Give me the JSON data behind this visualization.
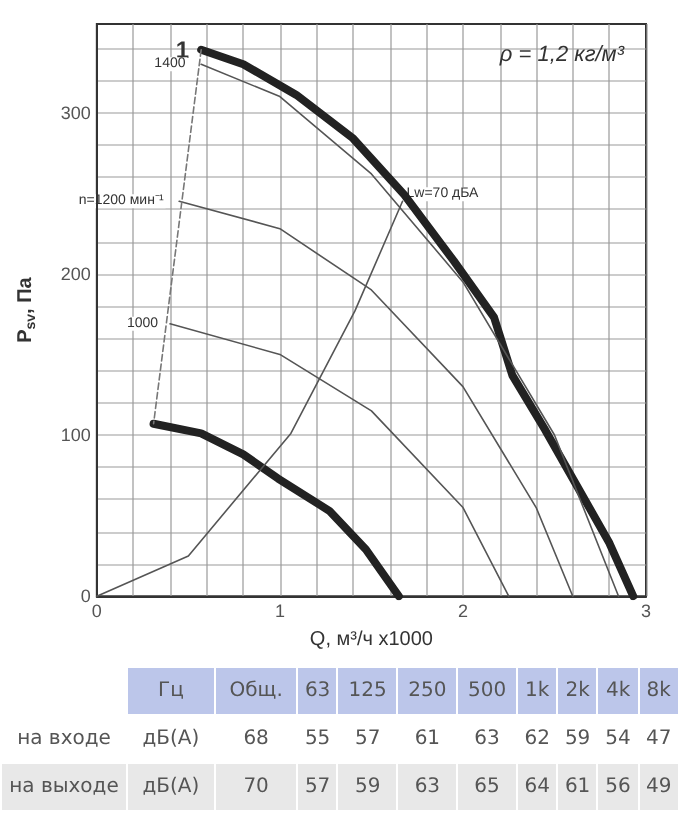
{
  "chart_data": [
    {
      "type": "line",
      "xlabel": "Q, м³/ч x1000",
      "ylabel": "P$_{sv}$, Па",
      "xlim": [
        0,
        3
      ],
      "ylim": [
        0,
        355
      ],
      "xticks": [
        0,
        {
          "value": 0.2,
          "label": null
        },
        {
          "value": 0.4,
          "label": null
        },
        {
          "value": 0.6,
          "label": null
        },
        {
          "value": 0.8,
          "label": null
        },
        1,
        {
          "value": 1.2,
          "label": null
        },
        {
          "value": 1.4,
          "label": null
        },
        {
          "value": 1.6,
          "label": null
        },
        {
          "value": 1.8,
          "label": null
        },
        2,
        {
          "value": 2.2,
          "label": null
        },
        {
          "value": 2.4,
          "label": null
        },
        {
          "value": 2.6,
          "label": null
        },
        {
          "value": 2.8,
          "label": null
        },
        3
      ],
      "yticks": [
        0,
        {
          "value": 20,
          "label": null
        },
        {
          "value": 40,
          "label": null
        },
        {
          "value": 60,
          "label": null
        },
        {
          "value": 80,
          "label": null
        },
        100,
        {
          "value": 120,
          "label": null
        },
        {
          "value": 140,
          "label": null
        },
        {
          "value": 160,
          "label": null
        },
        {
          "value": 180,
          "label": null
        },
        200,
        {
          "value": 220,
          "label": null
        },
        {
          "value": 240,
          "label": null
        },
        {
          "value": 260,
          "label": null
        },
        {
          "value": 280,
          "label": null
        },
        300,
        {
          "value": 320,
          "label": null
        },
        {
          "value": 340,
          "label": null
        }
      ],
      "grid": true,
      "marker": "none",
      "series": [
        {
          "color": "#222222",
          "x": [
            0.57,
            0.8,
            1.09,
            1.4,
            1.68,
            1.95,
            2.17,
            2.27,
            2.45,
            2.62,
            2.8,
            2.93
          ],
          "values": [
            339,
            330,
            311,
            284,
            249,
            208,
            173,
            137,
            103,
            69,
            33,
            0
          ]
        },
        {
          "color": "#222222",
          "x": [
            0.31,
            0.57,
            0.8,
            0.99,
            1.27,
            1.47,
            1.65
          ],
          "values": [
            107,
            101,
            88,
            73,
            53,
            29,
            0
          ]
        },
        {
          "color": "#555555",
          "x": [
            0.57,
            1.0,
            1.5,
            2.0,
            2.5,
            2.85
          ],
          "values": [
            330,
            310,
            262,
            195,
            100,
            0
          ]
        },
        {
          "color": "#555555",
          "x": [
            0.45,
            1.0,
            1.5,
            2.0,
            2.4,
            2.6
          ],
          "values": [
            245,
            228,
            190,
            130,
            55,
            0
          ]
        },
        {
          "color": "#555555",
          "x": [
            0.4,
            1.0,
            1.5,
            2.0,
            2.25
          ],
          "values": [
            169,
            150,
            115,
            55,
            0
          ]
        },
        {
          "color": "#555555",
          "x": [
            0,
            0.5,
            1.06,
            1.41,
            1.67
          ],
          "values": [
            0,
            25,
            101,
            177,
            245
          ]
        },
        {
          "color": "#777777",
          "line_style": "dashed",
          "x": [
            0.57,
            0.31
          ],
          "values": [
            339,
            107
          ]
        }
      ],
      "annotations": [
        {
          "text": "1",
          "x": 0.57,
          "y": 339
        },
        {
          "text": "1400",
          "x": 0.55,
          "y": 330
        },
        {
          "text": "n=1200 мин⁻¹",
          "x": 0.43,
          "y": 245
        },
        {
          "text": "1000",
          "x": 0.4,
          "y": 169
        },
        {
          "text": "Lw=70 дБА",
          "x": 1.67,
          "y": 245
        },
        "ρ = 1,2 кг/м³"
      ]
    },
    {
      "type": "heatmap",
      "xlabel": "Гц",
      "data_labels": true,
      "categories": [
        "Общ.",
        "63",
        "125",
        "250",
        "500",
        "1k",
        "2k",
        "4k",
        "8k"
      ],
      "y_categories": [
        "на входе",
        "на выходе"
      ],
      "y2_categories": [
        "дБ(А)",
        "дБ(А)"
      ],
      "cells": [
        [
          68,
          55,
          57,
          61,
          63,
          62,
          59,
          54,
          47
        ],
        [
          70,
          57,
          59,
          63,
          65,
          64,
          61,
          56,
          49
        ]
      ]
    }
  ]
}
